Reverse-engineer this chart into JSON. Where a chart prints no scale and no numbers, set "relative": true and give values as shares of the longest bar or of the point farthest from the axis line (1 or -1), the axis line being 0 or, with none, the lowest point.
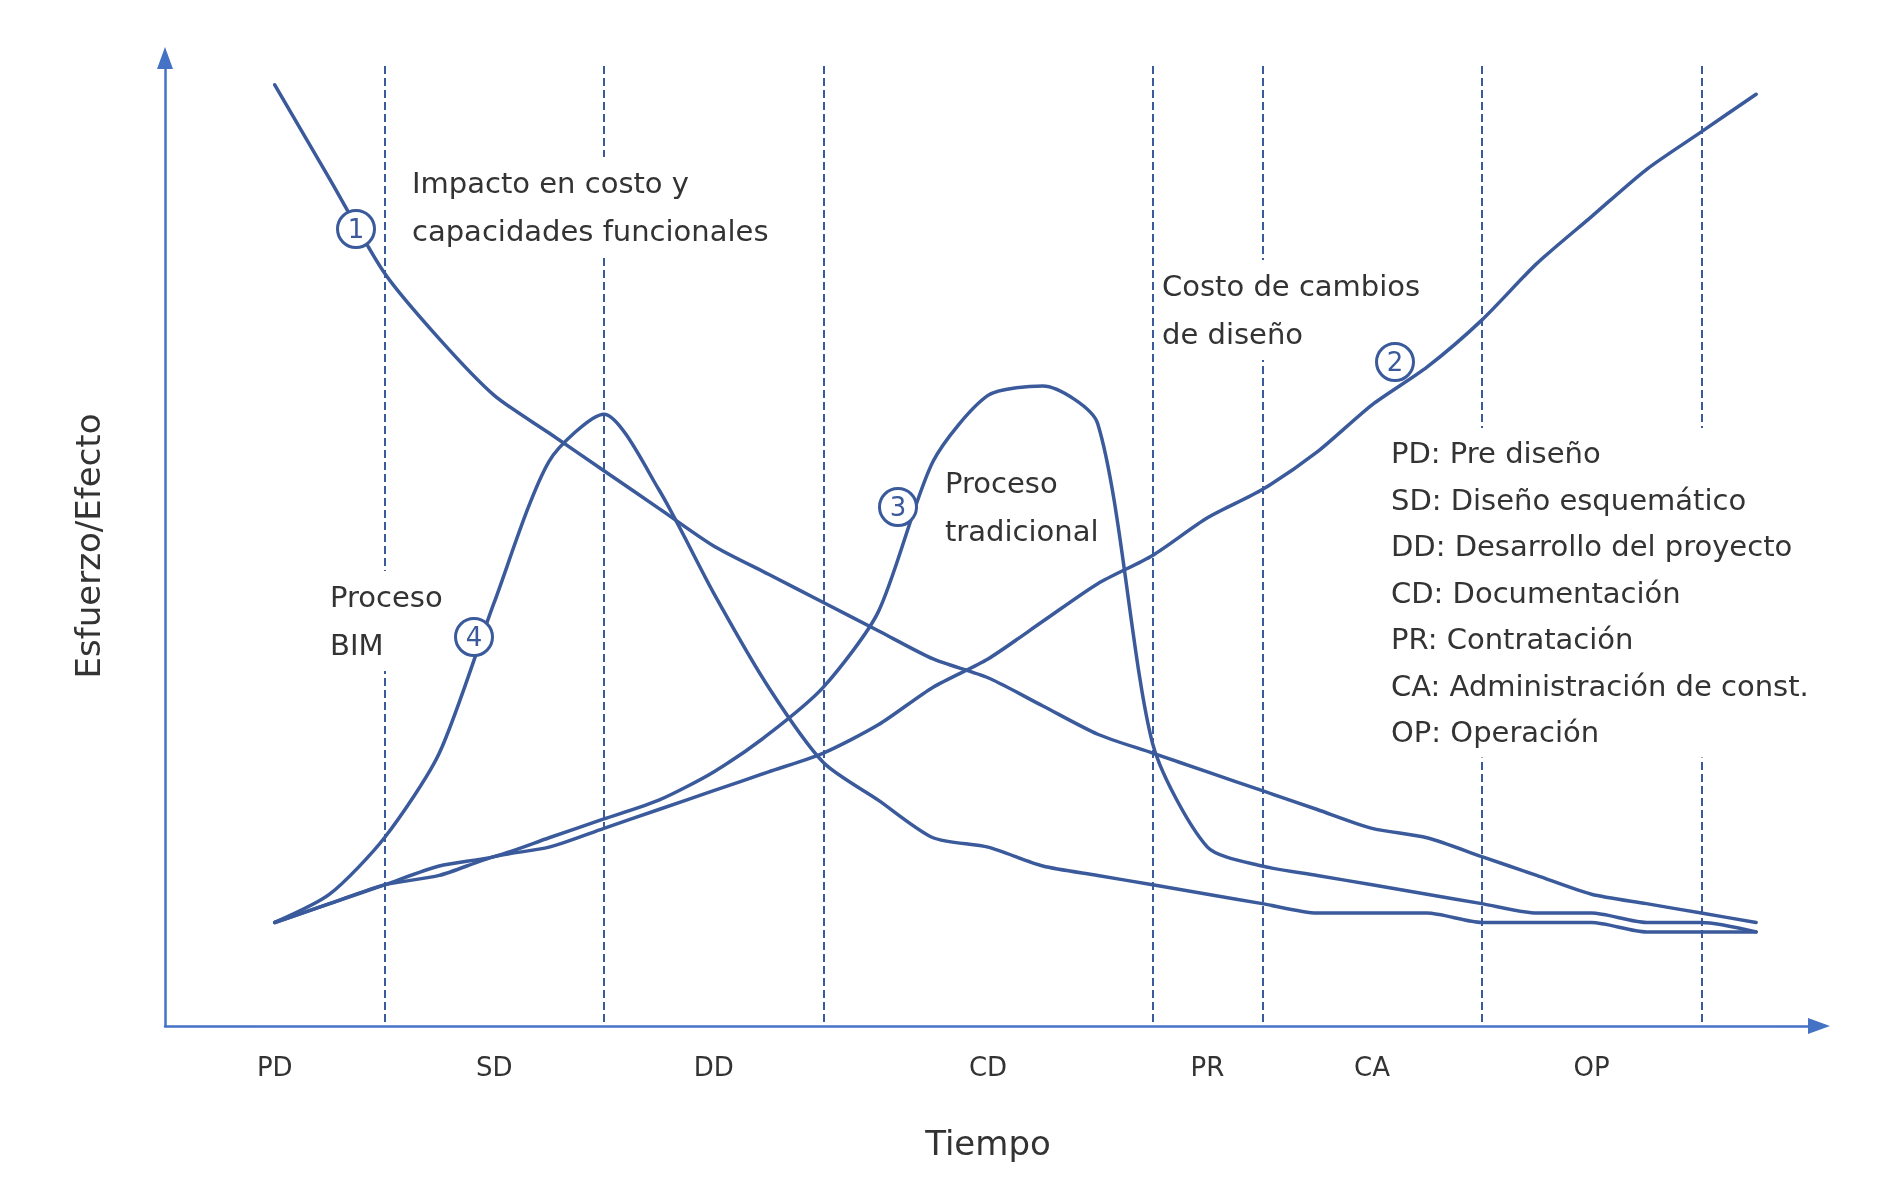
{
  "chart_data": {
    "type": "line",
    "relative": true,
    "xlabel": "Tiempo",
    "ylabel": "Esfuerzo/Efecto",
    "categories": [
      null,
      null,
      "PD",
      null,
      null,
      null,
      "SD",
      null,
      null,
      null,
      "DD",
      null,
      null,
      null,
      null,
      "CD",
      null,
      null,
      null,
      "PR",
      null,
      null,
      "CA",
      null,
      null,
      null,
      "OP",
      null,
      null,
      null,
      null
    ],
    "grid": "x",
    "legend": false,
    "marker": "none",
    "line_style": "solid",
    "series": [
      {
        "color": "#3a5a9b",
        "values": [
          null,
          null,
          1.0,
          0.9,
          0.8,
          0.73,
          0.67,
          0.63,
          0.59,
          0.55,
          0.51,
          0.48,
          0.45,
          0.42,
          0.39,
          0.37,
          0.34,
          0.31,
          0.29,
          0.27,
          0.25,
          0.23,
          0.21,
          0.2,
          0.18,
          0.16,
          0.14,
          0.13,
          0.12,
          0.11,
          null
        ]
      },
      {
        "color": "#3a5a9b",
        "values": [
          null,
          null,
          0.11,
          0.13,
          0.15,
          0.16,
          0.18,
          0.19,
          0.21,
          0.23,
          0.25,
          0.27,
          0.29,
          0.32,
          0.36,
          0.39,
          0.43,
          0.47,
          0.5,
          0.54,
          0.57,
          0.61,
          0.66,
          0.7,
          0.75,
          0.81,
          0.86,
          0.91,
          0.95,
          0.99,
          null
        ]
      },
      {
        "color": "#3a5a9b",
        "values": [
          null,
          null,
          0.11,
          0.13,
          0.15,
          0.17,
          0.18,
          0.2,
          0.22,
          0.24,
          0.27,
          0.31,
          0.36,
          0.44,
          0.6,
          0.67,
          0.68,
          0.64,
          0.3,
          0.19,
          0.17,
          0.16,
          0.15,
          0.14,
          0.13,
          0.12,
          0.12,
          0.11,
          0.11,
          0.1,
          null
        ]
      },
      {
        "color": "#3a5a9b",
        "values": [
          null,
          null,
          0.11,
          0.14,
          0.2,
          0.29,
          0.45,
          0.6,
          0.65,
          0.57,
          0.46,
          0.36,
          0.28,
          0.24,
          0.2,
          0.19,
          0.17,
          0.16,
          0.15,
          0.14,
          0.13,
          0.12,
          0.12,
          0.12,
          0.11,
          0.11,
          0.11,
          0.1,
          0.1,
          0.1,
          null
        ]
      }
    ],
    "annotations": [
      "Impacto en costo y\ncapacidades funcionales",
      "Costo de cambios\nde diseño",
      "Proceso\ntradicional",
      "Proceso\nBIM",
      "1",
      "2",
      "3",
      "4",
      "PD: Pre diseño\nSD: Diseño esquemático\nDD: Desarrollo del proyecto\nCD: Documentación\nPR: Contratación\nCA: Administración de const.\nOP: Operación"
    ]
  }
}
